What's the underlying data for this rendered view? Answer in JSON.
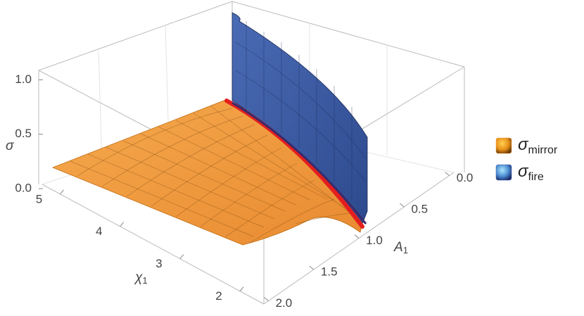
{
  "chart_data": {
    "type": "surface3d",
    "zlabel": "σ",
    "xlabel": {
      "symbol": "χ",
      "subscript": "1"
    },
    "ylabel": {
      "symbol": "A",
      "subscript": "1"
    },
    "zlim": [
      0,
      1.1
    ],
    "zticks": [
      {
        "value": 0,
        "label": "0.0"
      },
      {
        "value": 0.5,
        "label": "0.5"
      },
      {
        "value": 1,
        "label": "1.0"
      }
    ],
    "xlim": [
      1.6,
      5.3
    ],
    "xticks": [
      2,
      3,
      4,
      5
    ],
    "ylim": [
      2.05,
      -0.05
    ],
    "yticks": [
      {
        "value": 0,
        "label": "0.0"
      },
      {
        "value": 0.5,
        "label": "0.5"
      },
      {
        "value": 1,
        "label": "1.0"
      },
      {
        "value": 1.5,
        "label": "1.5"
      },
      {
        "value": 2,
        "label": "2.0"
      }
    ],
    "series": [
      {
        "name": {
          "symbol": "σ",
          "subscript": "mirror"
        },
        "color": "#f39a3c"
      },
      {
        "name": {
          "symbol": "σ",
          "subscript": "fire"
        },
        "color": "#3e5fa8"
      }
    ]
  }
}
